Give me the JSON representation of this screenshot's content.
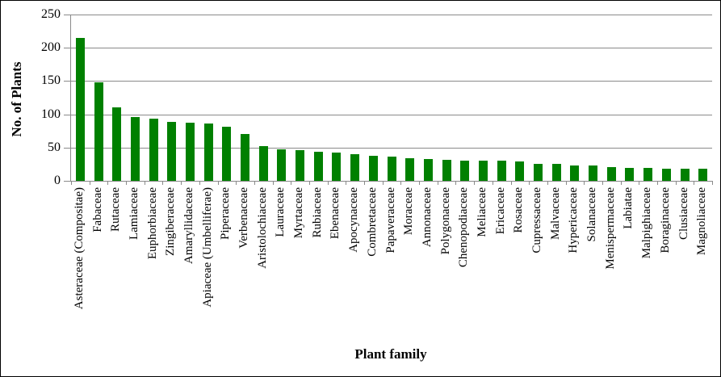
{
  "chart_data": {
    "type": "bar",
    "title": "",
    "xlabel": "Plant family",
    "ylabel": "No. of Plants",
    "ylim": [
      0,
      250
    ],
    "yticks": [
      0,
      50,
      100,
      150,
      200,
      250
    ],
    "grid": true,
    "legend": false,
    "bar_color": "#008000",
    "axis_color": "#8a8a8a",
    "categories": [
      "Asteraceae (Compositae)",
      "Fabaceae",
      "Rutaceae",
      "Lamiaceae",
      "Euphorbiaceae",
      "Zingiberaceae",
      "Amaryllidaceae",
      "Apiaceae (Umbelliferae)",
      "Piperaceae",
      "Verbenaceae",
      "Aristolochiaceae",
      "Lauraceae",
      "Myrtaceae",
      "Rubiaceae",
      "Ebenaceae",
      "Apocynaceae",
      "Combretaceae",
      "Papaveraceae",
      "Moraceae",
      "Annonaceae",
      "Polygonaceae",
      "Chenopodiaceae",
      "Meliaceae",
      "Ericaceae",
      "Rosaceae",
      "Cupressaceae",
      "Malvaceae",
      "Hypericaceae",
      "Solanaceae",
      "Menispermaceae",
      "Labiatae",
      "Malpighiaceae",
      "Boraginaceae",
      "Clusiaceae",
      "Magnoliaceae"
    ],
    "values": [
      215,
      148,
      110,
      96,
      94,
      89,
      88,
      86,
      81,
      70,
      52,
      47,
      46,
      44,
      42,
      40,
      38,
      36,
      34,
      33,
      32,
      31,
      30,
      30,
      29,
      25,
      25,
      23,
      23,
      21,
      20,
      20,
      18,
      18,
      18
    ]
  }
}
